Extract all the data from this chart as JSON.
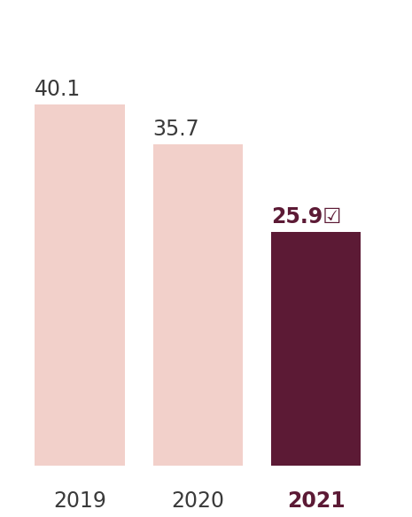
{
  "categories": [
    "2019",
    "2020",
    "2021"
  ],
  "values": [
    40.1,
    35.7,
    25.9
  ],
  "bar_colors": [
    "#f2d0ca",
    "#f2d0ca",
    "#5c1a35"
  ],
  "label_colors": [
    "#3a3a3a",
    "#3a3a3a",
    "#5c1a35"
  ],
  "label_fontweights": [
    "normal",
    "normal",
    "bold"
  ],
  "xlabel_fontweights": [
    "normal",
    "normal",
    "bold"
  ],
  "value_labels": [
    "40.1",
    "35.7",
    "25.9☑"
  ],
  "ylim": [
    0,
    50
  ],
  "background_color": "#ffffff",
  "bar_width": 0.38,
  "bar_positions": [
    0.0,
    0.5,
    1.0
  ],
  "label_fontsize": 17,
  "xlabel_fontsize": 17,
  "xlim": [
    -0.25,
    1.32
  ]
}
